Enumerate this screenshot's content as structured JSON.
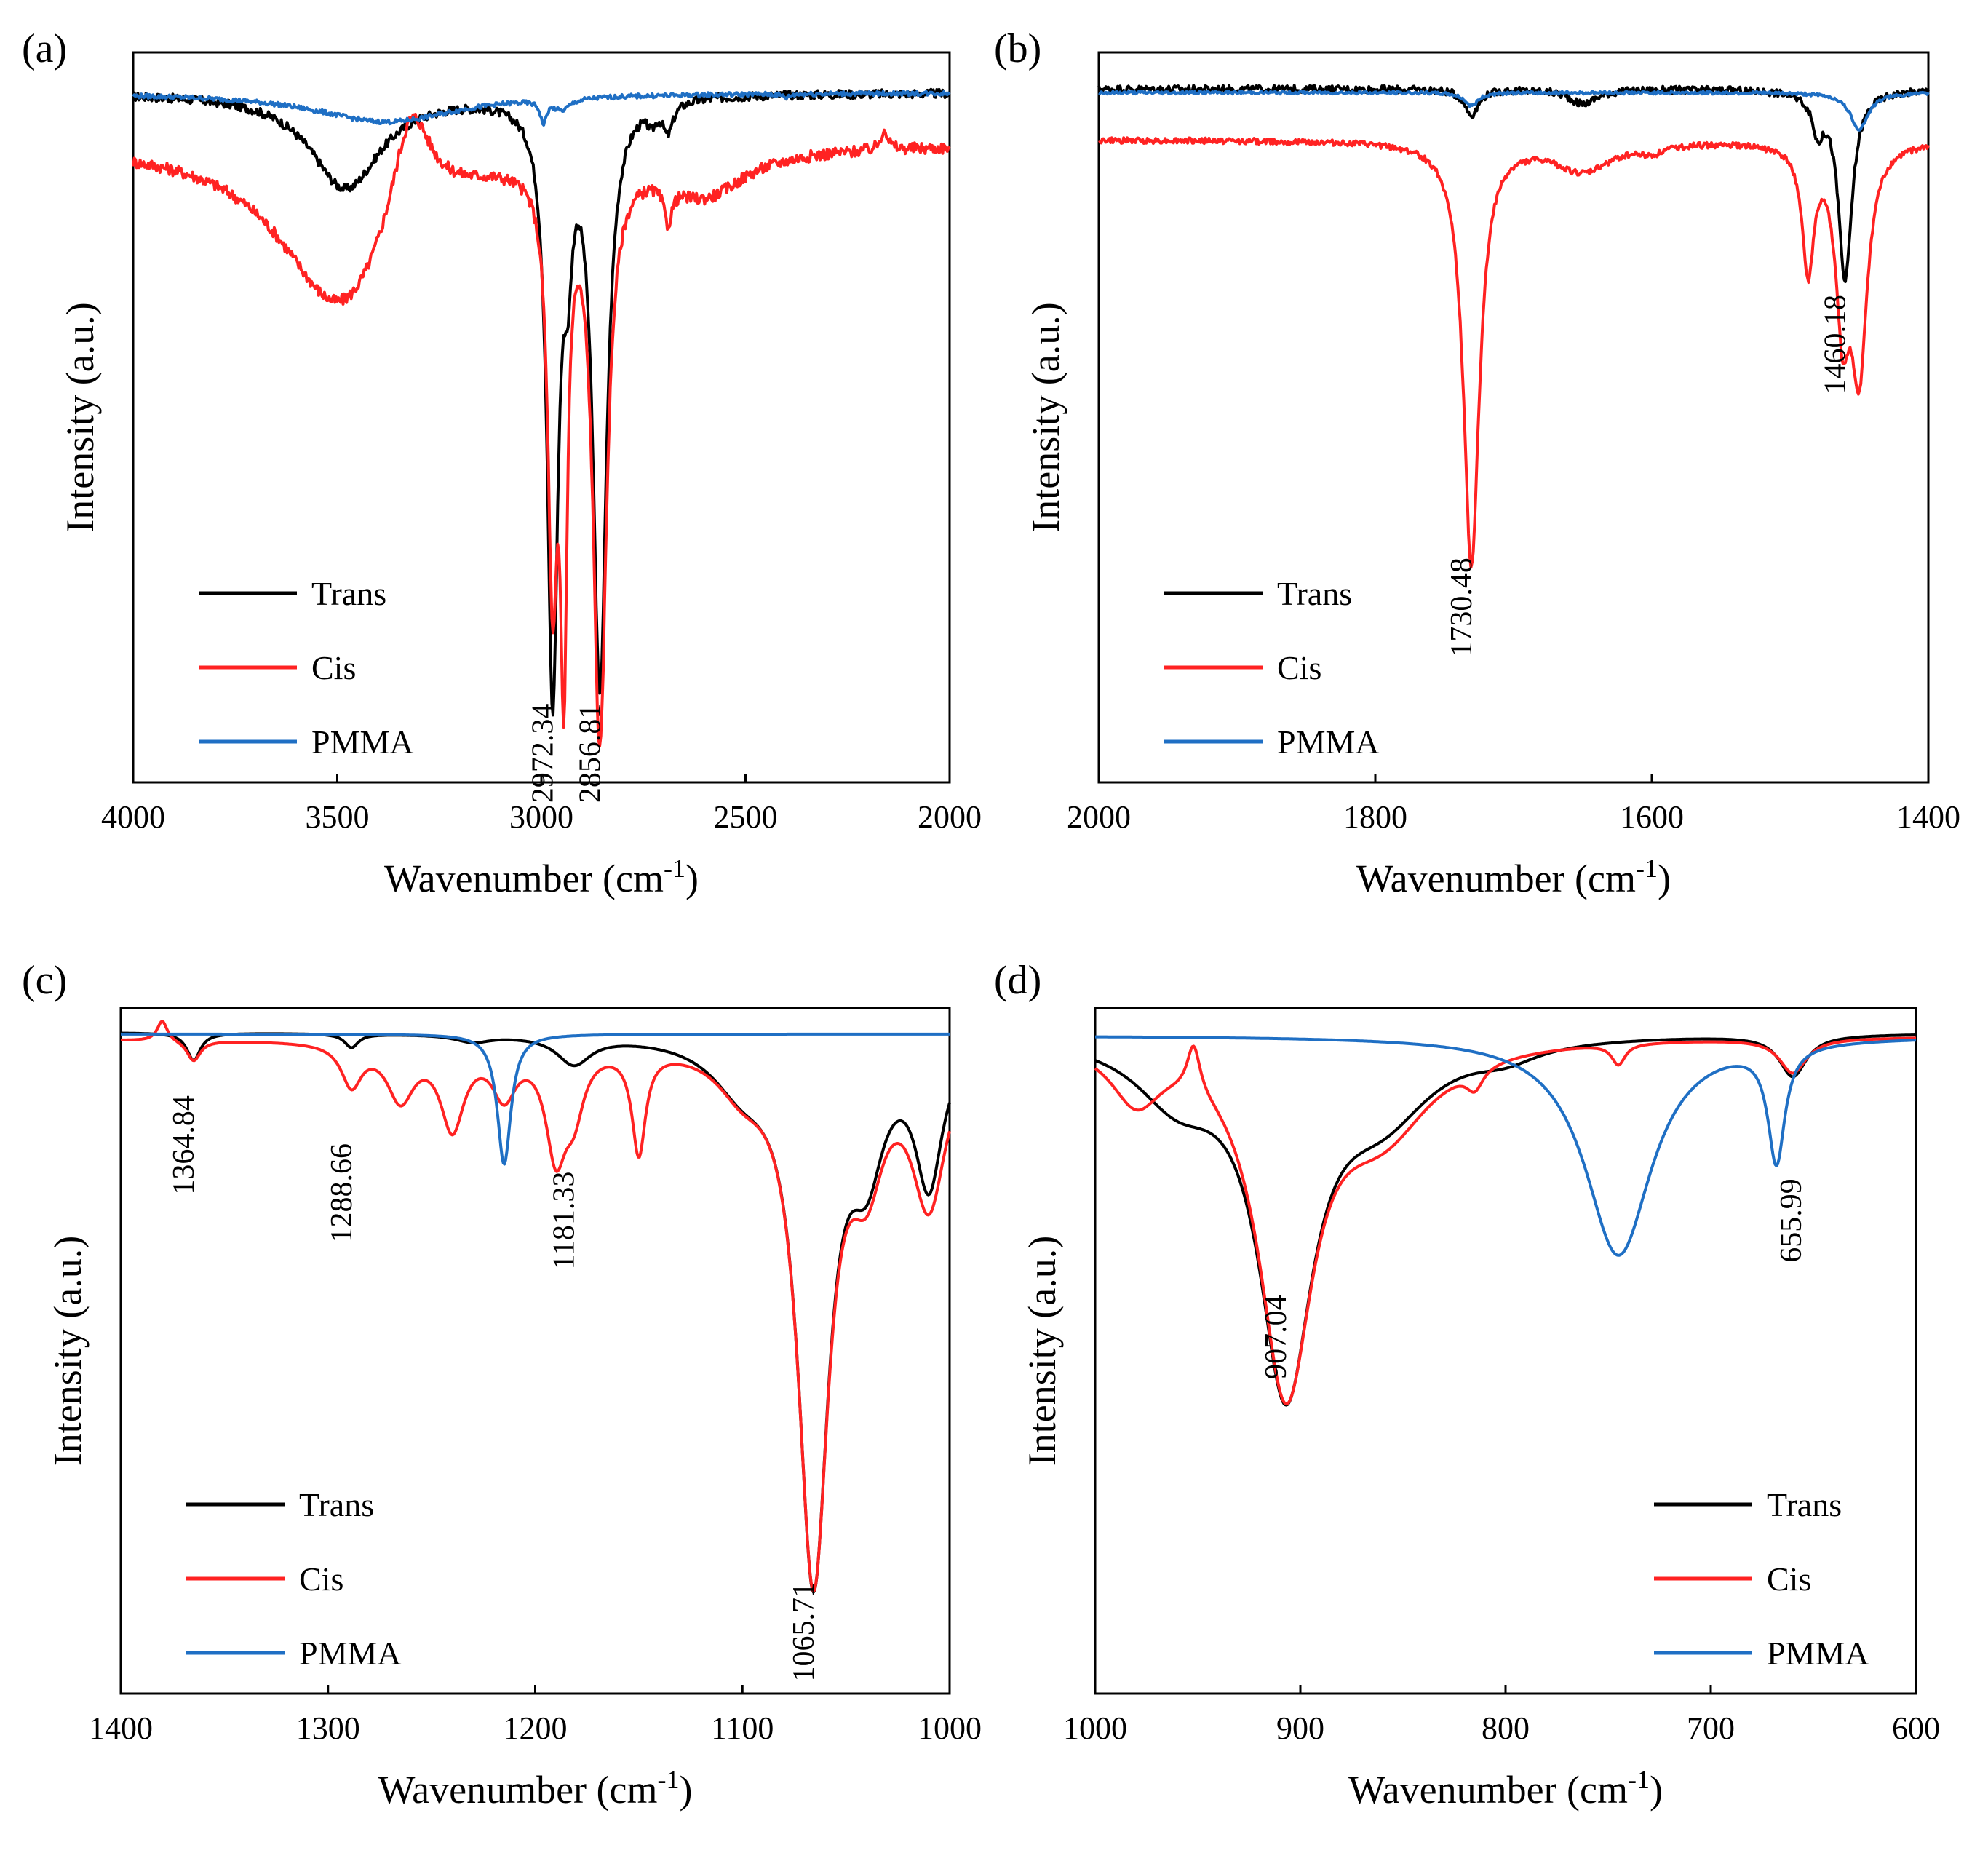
{
  "figure": {
    "panels": [
      "(a)",
      "(b)",
      "(c)",
      "(d)"
    ]
  },
  "colors": {
    "Trans": "#000000",
    "Cis": "#ff2222",
    "PMMA": "#1f6fc4",
    "frame": "#000000"
  },
  "chart_data": [
    {
      "panel": "(a)",
      "type": "line",
      "xlabel": "Wavenumber (cm",
      "xlabel_sup": "-1",
      "xlabel_close": ")",
      "ylabel": "Intensity (a.u.)",
      "xlim": [
        4000,
        2000
      ],
      "xticks": [
        4000,
        3500,
        3000,
        2500,
        2000
      ],
      "ylim": [
        0,
        1
      ],
      "legend_position": "bottom-left",
      "legend": [
        "Trans",
        "Cis",
        "PMMA"
      ],
      "annotations": [
        {
          "text": "2972.34",
          "x": 2972.34,
          "y": 0.04
        },
        {
          "text": "2856.81",
          "x": 2856.81,
          "y": 0.04
        }
      ],
      "series": [
        {
          "name": "Trans",
          "baseline": 0.945,
          "noise": 0.006,
          "peaks": [
            [
              3480,
              0.13,
              105
            ],
            [
              2972.34,
              0.81,
              16
            ],
            [
              2935,
              0.14,
              12
            ],
            [
              2856.81,
              0.805,
              20
            ],
            [
              2690,
              0.04,
              15
            ],
            [
              2730,
              0.02,
              12
            ]
          ]
        },
        {
          "name": "Cis",
          "baseline": 0.875,
          "noise": 0.008,
          "peaks": [
            [
              3490,
              0.23,
              180
            ],
            [
              3320,
              -0.16,
              60
            ],
            [
              2972.34,
              0.55,
              14
            ],
            [
              2945,
              0.62,
              10
            ],
            [
              2856.81,
              0.79,
              20
            ],
            [
              2690,
              0.05,
              12
            ],
            [
              2600,
              0.06,
              120
            ],
            [
              2160,
              -0.03,
              10
            ]
          ]
        },
        {
          "name": "PMMA",
          "baseline": 0.945,
          "noise": 0.003,
          "peaks": [
            [
              3380,
              0.04,
              220
            ],
            [
              2995,
              0.03,
              9
            ],
            [
              2950,
              0.015,
              25
            ],
            [
              2400,
              0.005,
              10
            ]
          ]
        }
      ]
    },
    {
      "panel": "(b)",
      "type": "line",
      "xlabel": "Wavenumber (cm",
      "xlabel_sup": "-1",
      "xlabel_close": ")",
      "ylabel": "Intensity (a.u.)",
      "xlim": [
        2000,
        1400
      ],
      "xticks": [
        2000,
        1800,
        1600,
        1400
      ],
      "ylim": [
        0,
        1
      ],
      "legend_position": "bottom-left",
      "legend": [
        "Trans",
        "Cis",
        "PMMA"
      ],
      "annotations": [
        {
          "text": "1730.48",
          "x": 1730.48,
          "y": 0.24
        },
        {
          "text": "1460.18",
          "x": 1460.18,
          "y": 0.6
        }
      ],
      "series": [
        {
          "name": "Trans",
          "baseline": 0.95,
          "noise": 0.005,
          "peaks": [
            [
              1730.48,
              0.035,
              6
            ],
            [
              1650,
              0.02,
              12
            ],
            [
              1460.18,
              0.26,
              6
            ],
            [
              1480,
              0.05,
              5
            ]
          ]
        },
        {
          "name": "Cis",
          "baseline": 0.88,
          "noise": 0.004,
          "peaks": [
            [
              1730.48,
              0.58,
              7
            ],
            [
              1650,
              0.04,
              25
            ],
            [
              1600,
              0.01,
              10
            ],
            [
              1487,
              0.17,
              5
            ],
            [
              1450,
              0.3,
              7
            ],
            [
              1462,
              0.22,
              6
            ]
          ]
        },
        {
          "name": "PMMA",
          "baseline": 0.945,
          "noise": 0.002,
          "peaks": [
            [
              1730.48,
              0.018,
              6
            ],
            [
              1450,
              0.05,
              8
            ]
          ]
        }
      ]
    },
    {
      "panel": "(c)",
      "type": "line",
      "xlabel": "Wavenumber (cm",
      "xlabel_sup": "-1",
      "xlabel_close": ")",
      "ylabel": "Intensity (a.u.)",
      "xlim": [
        1400,
        1000
      ],
      "xticks": [
        1400,
        1300,
        1200,
        1100,
        1000
      ],
      "ylim": [
        0,
        1
      ],
      "legend_position": "bottom-left",
      "legend": [
        "Trans",
        "Cis",
        "PMMA"
      ],
      "annotations": [
        {
          "text": "1364.84",
          "x": 1364.84,
          "y": 0.8
        },
        {
          "text": "1288.66",
          "x": 1288.66,
          "y": 0.73
        },
        {
          "text": "1181.33",
          "x": 1181.33,
          "y": 0.69
        },
        {
          "text": "1065.71",
          "x": 1065.71,
          "y": 0.09
        }
      ],
      "series": [
        {
          "name": "Trans",
          "baseline": 0.965,
          "noise": 0.0,
          "peaks": [
            [
              1364.84,
              0.04,
              4
            ],
            [
              1288.66,
              0.02,
              4
            ],
            [
              1230,
              0.01,
              10
            ],
            [
              1181.33,
              0.04,
              10
            ],
            [
              1065.71,
              0.78,
              9
            ],
            [
              1100,
              0.06,
              18
            ],
            [
              1040,
              0.15,
              10
            ],
            [
              1010,
              0.2,
              8
            ]
          ]
        },
        {
          "name": "Cis",
          "baseline": 0.955,
          "noise": 0.0,
          "peaks": [
            [
              1380,
              -0.03,
              3
            ],
            [
              1364.84,
              0.03,
              4
            ],
            [
              1288.66,
              0.06,
              6
            ],
            [
              1265,
              0.08,
              8
            ],
            [
              1240,
              0.12,
              7
            ],
            [
              1215,
              0.07,
              7
            ],
            [
              1190,
              0.15,
              6
            ],
            [
              1181.33,
              0.08,
              6
            ],
            [
              1150,
              0.15,
              4
            ],
            [
              1065.71,
              0.77,
              9
            ],
            [
              1100,
              0.05,
              15
            ],
            [
              1040,
              0.15,
              10
            ],
            [
              1010,
              0.22,
              10
            ]
          ]
        },
        {
          "name": "PMMA",
          "baseline": 0.962,
          "noise": 0.0,
          "peaks": [
            [
              1215,
              0.19,
              4
            ]
          ]
        }
      ]
    },
    {
      "panel": "(d)",
      "type": "line",
      "xlabel": "Wavenumber (cm",
      "xlabel_sup": "-1",
      "xlabel_close": ")",
      "ylabel": "Intensity (a.u.)",
      "xlim": [
        1000,
        600
      ],
      "xticks": [
        1000,
        900,
        800,
        700,
        600
      ],
      "ylim": [
        0,
        1
      ],
      "legend_position": "bottom-right",
      "legend": [
        "Trans",
        "Cis",
        "PMMA"
      ],
      "annotations": [
        {
          "text": "907.04",
          "x": 907.04,
          "y": 0.52
        },
        {
          "text": "655.99",
          "x": 655.99,
          "y": 0.69
        }
      ],
      "series": [
        {
          "name": "Trans",
          "baseline": 0.965,
          "noise": 0.0,
          "peaks": [
            [
              907.04,
              0.5,
              16
            ],
            [
              960,
              0.08,
              25
            ],
            [
              860,
              0.1,
              30
            ],
            [
              800,
              0.02,
              20
            ],
            [
              660,
              0.06,
              8
            ]
          ]
        },
        {
          "name": "Cis",
          "baseline": 0.96,
          "noise": 0.0,
          "peaks": [
            [
              907.04,
              0.5,
              16
            ],
            [
              952,
              -0.07,
              4
            ],
            [
              980,
              0.08,
              15
            ],
            [
              860,
              0.12,
              30
            ],
            [
              815,
              0.03,
              5
            ],
            [
              745,
              0.03,
              4
            ],
            [
              660,
              0.05,
              8
            ]
          ]
        },
        {
          "name": "PMMA",
          "baseline": 0.96,
          "noise": 0.0,
          "peaks": [
            [
              745,
              0.32,
              20
            ],
            [
              668,
              0.17,
              5
            ]
          ]
        }
      ]
    }
  ]
}
